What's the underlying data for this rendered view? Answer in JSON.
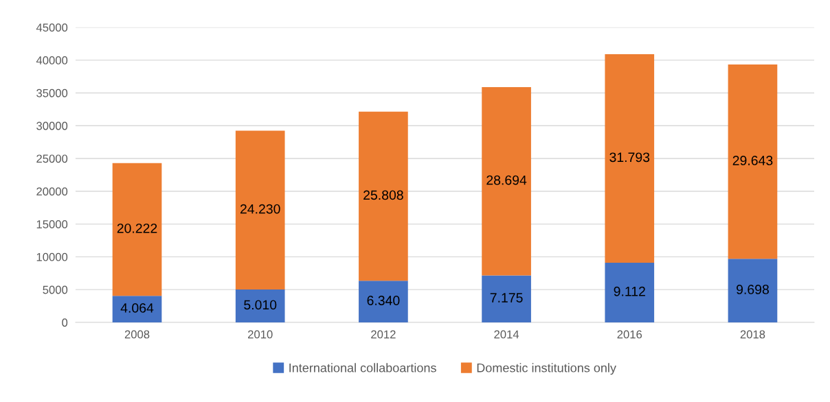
{
  "chart_data": {
    "type": "bar",
    "stacked": true,
    "categories": [
      "2008",
      "2010",
      "2012",
      "2014",
      "2016",
      "2018"
    ],
    "series": [
      {
        "name": "International collaboartions",
        "color": "#4472c4",
        "values": [
          4064,
          5010,
          6340,
          7175,
          9112,
          9698
        ],
        "value_labels": [
          "4.064",
          "5.010",
          "6.340",
          "7.175",
          "9.112",
          "9.698"
        ]
      },
      {
        "name": "Domestic institutions only",
        "color": "#ed7d31",
        "values": [
          20222,
          24230,
          25808,
          28694,
          31793,
          29643
        ],
        "value_labels": [
          "20.222",
          "24.230",
          "25.808",
          "28.694",
          "31.793",
          "29.643"
        ]
      }
    ],
    "ylim": [
      0,
      45000
    ],
    "yticks": [
      0,
      5000,
      10000,
      15000,
      20000,
      25000,
      30000,
      35000,
      40000,
      45000
    ],
    "grid": "y",
    "legend": "bottom"
  }
}
